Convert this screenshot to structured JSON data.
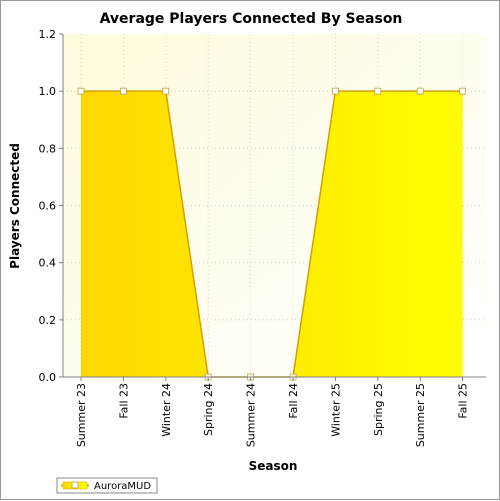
{
  "chart_data": {
    "type": "area",
    "title": "Average Players Connected By Season",
    "xlabel": "Season",
    "ylabel": "Players Connected",
    "categories": [
      "Summer 23",
      "Fall 23",
      "Winter 24",
      "Spring 24",
      "Summer 24",
      "Fall 24",
      "Winter 25",
      "Spring 25",
      "Summer 25",
      "Fall 25"
    ],
    "series": [
      {
        "name": "AuroraMUD",
        "values": [
          1.0,
          1.0,
          1.0,
          0.0,
          0.0,
          0.0,
          1.0,
          1.0,
          1.0,
          1.0
        ]
      }
    ],
    "ylim": [
      0.0,
      1.2
    ],
    "yticks": [
      "0.0",
      "0.2",
      "0.4",
      "0.6",
      "0.8",
      "1.0",
      "1.2"
    ],
    "grid": true,
    "legend_position": "bottom-left",
    "colors": {
      "fill_left": "#ffd700",
      "fill_right": "#ffff00",
      "line": "#d4a000",
      "plot_bg": "#fffbe0",
      "grid": "#c8c8c8"
    }
  }
}
